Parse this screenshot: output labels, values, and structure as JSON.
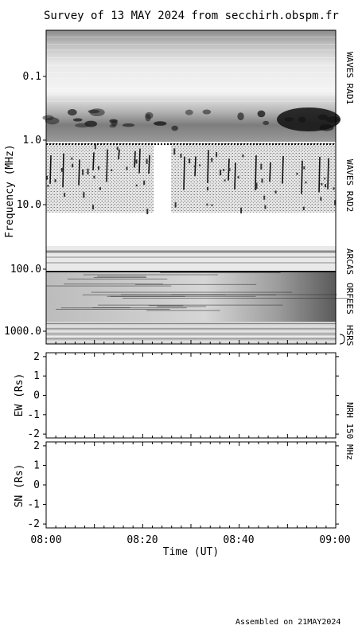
{
  "title": "Survey of 13 MAY 2024 from secchirh.obspm.fr",
  "footer": "Assembled on 21MAY2024",
  "colors": {
    "background": "#ffffff",
    "ink": "#000000"
  },
  "chart_data": [
    {
      "type": "heatmap",
      "name": "dynamic-spectrum",
      "ylabel": "Frequency (MHz)",
      "yscale": "log",
      "y_inverted": true,
      "ytick_labels": [
        "0.1",
        "1.0",
        "10.0",
        "100.0",
        "1000.0"
      ],
      "xrange": [
        "08:00",
        "09:00"
      ],
      "instruments": [
        {
          "label": "WAVES RAD1",
          "freq_range_mhz": [
            0.02,
            1.04
          ]
        },
        {
          "label": "WAVES RAD2",
          "freq_range_mhz": [
            1.075,
            13.8
          ]
        },
        {
          "label": "ARCAS",
          "freq_range_mhz": [
            42,
            68
          ]
        },
        {
          "label": "ORFEES",
          "freq_range_mhz": [
            144,
            1004
          ]
        },
        {
          "label": "HSRS",
          "freq_range_mhz": [
            1004,
            1200
          ]
        }
      ],
      "data_gap": {
        "instrument": "WAVES RAD2",
        "time_range": [
          "08:22",
          "08:26"
        ]
      }
    },
    {
      "type": "line",
      "name": "nrh-ew",
      "ylabel": "EW (Rs)",
      "ytick_labels": [
        "2",
        "1",
        "0",
        "-1",
        "-2"
      ],
      "ylim": [
        -2.2,
        2.2
      ],
      "series": []
    },
    {
      "type": "line",
      "name": "nrh-sn",
      "ylabel": "SN (Rs)",
      "ytick_labels": [
        "2",
        "1",
        "0",
        "-1",
        "-2"
      ],
      "ylim": [
        -2.2,
        2.2
      ],
      "series": []
    }
  ],
  "nrh_label": "NRH 150 MHz",
  "xaxis": {
    "label": "Time (UT)",
    "tick_labels": [
      "08:00",
      "08:20",
      "08:40",
      "09:00"
    ],
    "range_minutes": [
      0,
      60
    ]
  }
}
